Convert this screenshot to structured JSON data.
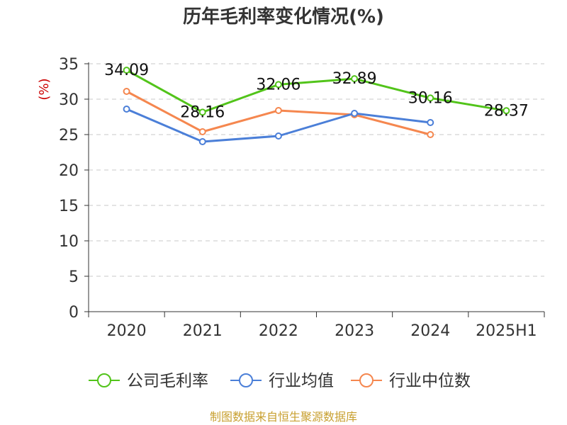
{
  "chart_data": {
    "type": "line",
    "title": "历年毛利率变化情况(%)",
    "ylabel": "(%)",
    "xlabel": "",
    "categories": [
      "2020",
      "2021",
      "2022",
      "2023",
      "2024",
      "2025H1"
    ],
    "ylim": [
      0,
      35
    ],
    "yticks": [
      0,
      5,
      10,
      15,
      20,
      25,
      30,
      35
    ],
    "grid": true,
    "legend_position": "bottom",
    "series": [
      {
        "name": "公司毛利率",
        "color": "#52c41a",
        "values": [
          34.09,
          28.16,
          32.06,
          32.89,
          30.16,
          28.37
        ],
        "data_labels": [
          "34.09",
          "28.16",
          "32.06",
          "32.89",
          "30.16",
          "28.37"
        ]
      },
      {
        "name": "行业均值",
        "color": "#4b7fd8",
        "values": [
          28.6,
          24.0,
          24.8,
          28.0,
          26.7,
          null
        ]
      },
      {
        "name": "行业中位数",
        "color": "#f5874f",
        "values": [
          31.1,
          25.4,
          28.4,
          27.8,
          25.0,
          null
        ]
      }
    ]
  },
  "footer": {
    "source": "制图数据来自恒生聚源数据库"
  }
}
